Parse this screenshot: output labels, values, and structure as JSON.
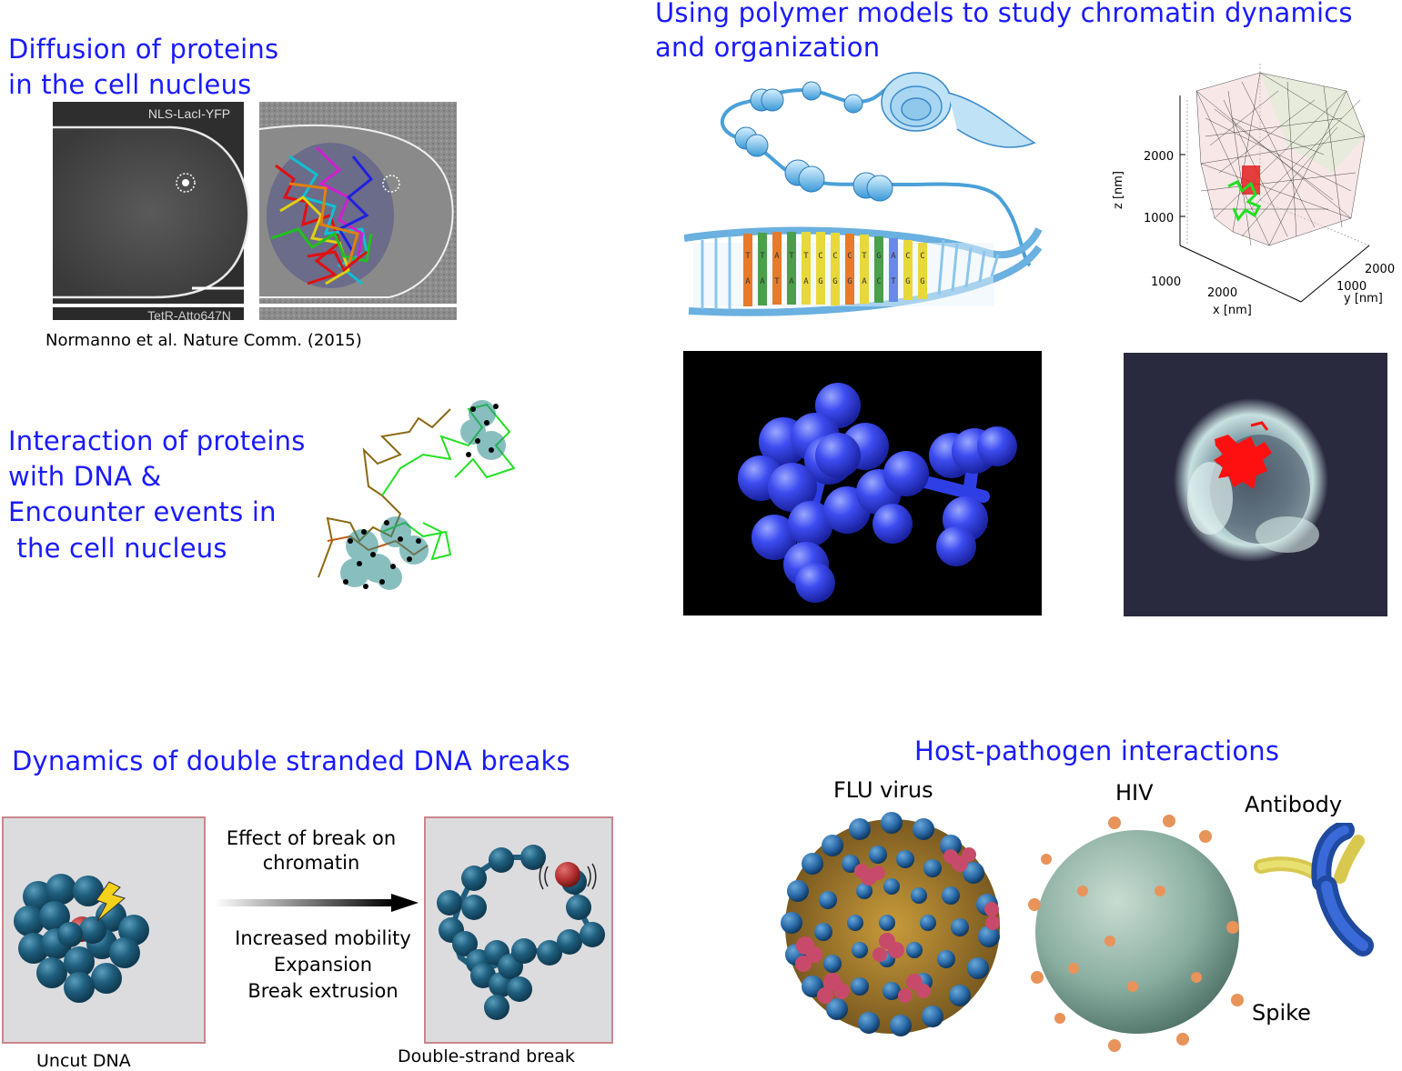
{
  "sections": {
    "diffusion": {
      "title_line1": "Diffusion of proteins",
      "title_line2": "in the cell nucleus",
      "panel_label_top": "NLS-LacI-YFP",
      "panel_label_bottom": "TetR-Atto647N",
      "citation": "Normanno et al. Nature Comm. (2015)"
    },
    "polymer": {
      "title_line1": "Using polymer models to study chromatin dynamics",
      "title_line2": "and organization",
      "dna_bases_top": [
        "T",
        "T",
        "A",
        "T",
        "T",
        "C",
        "C",
        "C",
        "T",
        "G",
        "A",
        "C",
        "C"
      ],
      "dna_bases_bottom": [
        "A",
        "A",
        "T",
        "A",
        "A",
        "G",
        "G",
        "G",
        "A",
        "C",
        "T",
        "G",
        "G"
      ],
      "plot3d": {
        "z_label": "z  [nm]",
        "x_label": "x  [nm]",
        "y_label": "y  [nm]",
        "z_ticks": [
          "2000",
          "1000"
        ],
        "x_ticks": [
          "1000",
          "2000"
        ],
        "y_ticks": [
          "2000",
          "1000"
        ]
      }
    },
    "interaction": {
      "line1": "Interaction of proteins",
      "line2": "with DNA &",
      "line3": "Encounter events in",
      "line4": " the cell nucleus"
    },
    "dsb": {
      "title": "Dynamics of double stranded DNA breaks",
      "arrow_label_line1": "Effect of break on",
      "arrow_label_line2": "chromatin",
      "effect1": "Increased mobility",
      "effect2": "Expansion",
      "effect3": "Break extrusion",
      "left_caption": "Uncut DNA",
      "right_caption": "Double-strand break"
    },
    "host": {
      "title": "Host-pathogen interactions",
      "flu_label": "FLU virus",
      "hiv_label": "HIV",
      "antibody_label": "Antibody",
      "spike_label": "Spike"
    }
  },
  "colors": {
    "title_blue": "#1a1aff",
    "bead_blue": "#2f3fe6",
    "chromatin_teal": "#1f5e7d",
    "break_red": "#b33030",
    "panel_border": "#c9868d",
    "panel_bg": "#dcdcde"
  }
}
